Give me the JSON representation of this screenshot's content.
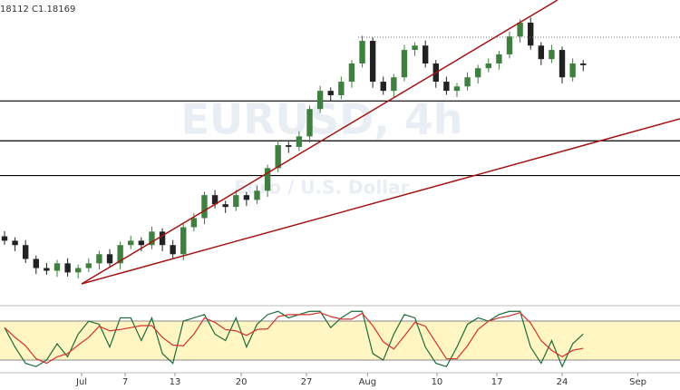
{
  "chart_data": [
    {
      "type": "candlestick",
      "header": "18112  C1.18169",
      "watermark": "EURUSD, 4h",
      "watermark_sub": "Euro / U.S. Dollar",
      "up_color": "#3f7f3f",
      "down_color": "#222222",
      "ylim": [
        1.111,
        1.201
      ],
      "xlim": [
        -0.43,
        64.2
      ],
      "levels": [
        1.1711,
        1.1593,
        1.149
      ],
      "level_color": "#000000",
      "candles": [
        [
          1.131,
          1.1325,
          1.1285,
          1.1297
        ],
        [
          1.1297,
          1.1307,
          1.1266,
          1.1284
        ],
        [
          1.1284,
          1.1299,
          1.1231,
          1.1243
        ],
        [
          1.1243,
          1.1253,
          1.1198,
          1.1216
        ],
        [
          1.1216,
          1.1231,
          1.1196,
          1.1208
        ],
        [
          1.1208,
          1.124,
          1.119,
          1.123
        ],
        [
          1.123,
          1.1245,
          1.1191,
          1.1203
        ],
        [
          1.1203,
          1.1226,
          1.1185,
          1.1216
        ],
        [
          1.1216,
          1.1245,
          1.1204,
          1.123
        ],
        [
          1.123,
          1.1267,
          1.1212,
          1.1257
        ],
        [
          1.1257,
          1.1272,
          1.1218,
          1.123
        ],
        [
          1.123,
          1.1294,
          1.1212,
          1.1284
        ],
        [
          1.1284,
          1.1312,
          1.1272,
          1.1297
        ],
        [
          1.1297,
          1.1307,
          1.1266,
          1.1284
        ],
        [
          1.1284,
          1.1339,
          1.1272,
          1.1324
        ],
        [
          1.1324,
          1.1334,
          1.1266,
          1.1284
        ],
        [
          1.1284,
          1.1299,
          1.1245,
          1.1257
        ],
        [
          1.1257,
          1.1347,
          1.1239,
          1.1337
        ],
        [
          1.1337,
          1.1379,
          1.1325,
          1.1364
        ],
        [
          1.1364,
          1.1442,
          1.1346,
          1.1432
        ],
        [
          1.1432,
          1.1447,
          1.1393,
          1.1405
        ],
        [
          1.1405,
          1.1415,
          1.1379,
          1.1397
        ],
        [
          1.1397,
          1.1447,
          1.1385,
          1.1432
        ],
        [
          1.1432,
          1.1442,
          1.14,
          1.1418
        ],
        [
          1.1418,
          1.146,
          1.1406,
          1.1445
        ],
        [
          1.1445,
          1.1522,
          1.1427,
          1.1512
        ],
        [
          1.1512,
          1.1595,
          1.15,
          1.158
        ],
        [
          1.158,
          1.159,
          1.1557,
          1.1575
        ],
        [
          1.1575,
          1.1621,
          1.1563,
          1.1606
        ],
        [
          1.1606,
          1.1697,
          1.1588,
          1.1687
        ],
        [
          1.1687,
          1.1756,
          1.1675,
          1.1741
        ],
        [
          1.1741,
          1.1751,
          1.171,
          1.1728
        ],
        [
          1.1728,
          1.1783,
          1.1716,
          1.1768
        ],
        [
          1.1768,
          1.1832,
          1.175,
          1.1822
        ],
        [
          1.1822,
          1.1904,
          1.181,
          1.1889
        ],
        [
          1.1889,
          1.1899,
          1.175,
          1.1768
        ],
        [
          1.1768,
          1.1783,
          1.1729,
          1.1741
        ],
        [
          1.1741,
          1.1791,
          1.1723,
          1.1781
        ],
        [
          1.1781,
          1.1877,
          1.1769,
          1.1862
        ],
        [
          1.1862,
          1.1885,
          1.1844,
          1.1875
        ],
        [
          1.1875,
          1.189,
          1.181,
          1.1822
        ],
        [
          1.1822,
          1.1832,
          1.175,
          1.1768
        ],
        [
          1.1768,
          1.1783,
          1.1729,
          1.1741
        ],
        [
          1.1741,
          1.1764,
          1.1723,
          1.1754
        ],
        [
          1.1754,
          1.1796,
          1.1742,
          1.1781
        ],
        [
          1.1781,
          1.1818,
          1.1763,
          1.1808
        ],
        [
          1.1808,
          1.1837,
          1.1796,
          1.1822
        ],
        [
          1.1822,
          1.1859,
          1.1804,
          1.1849
        ],
        [
          1.1849,
          1.1917,
          1.1837,
          1.1902
        ],
        [
          1.1902,
          1.1953,
          1.1884,
          1.1943
        ],
        [
          1.1943,
          1.1958,
          1.1863,
          1.1875
        ],
        [
          1.1875,
          1.1885,
          1.1817,
          1.1835
        ],
        [
          1.1835,
          1.1877,
          1.1823,
          1.1862
        ],
        [
          1.1862,
          1.1872,
          1.1763,
          1.1781
        ],
        [
          1.1781,
          1.1837,
          1.1769,
          1.1822
        ],
        [
          1.1822,
          1.1832,
          1.1799,
          1.18169
        ]
      ],
      "xticks": [
        {
          "value": 7.33,
          "label": "Jul"
        },
        {
          "value": 11.47,
          "label": "7"
        },
        {
          "value": 16.2,
          "label": "13"
        },
        {
          "value": 22.5,
          "label": "20"
        },
        {
          "value": 28.7,
          "label": "27"
        },
        {
          "value": 34.5,
          "label": "Aug"
        },
        {
          "value": 41.1,
          "label": "10"
        },
        {
          "value": 46.8,
          "label": "17"
        },
        {
          "value": 53.0,
          "label": "24"
        },
        {
          "value": 60.2,
          "label": "Sep"
        }
      ]
    },
    {
      "type": "stochastic",
      "ylim": [
        0,
        100
      ],
      "levels": [
        20,
        80
      ],
      "band_color": "#fff6c4",
      "series": [
        {
          "color": "#1f6b3a",
          "values": [
            70,
            40,
            15,
            10,
            20,
            45,
            25,
            60,
            80,
            75,
            40,
            85,
            85,
            50,
            85,
            30,
            15,
            80,
            85,
            90,
            60,
            50,
            85,
            40,
            75,
            90,
            95,
            85,
            90,
            95,
            95,
            70,
            85,
            95,
            95,
            30,
            20,
            60,
            90,
            85,
            40,
            15,
            10,
            40,
            75,
            85,
            80,
            90,
            95,
            95,
            40,
            15,
            50,
            10,
            45,
            60
          ]
        },
        {
          "color": "#d0342c",
          "values": [
            70,
            55,
            42,
            22,
            15,
            25,
            30,
            43,
            55,
            72,
            65,
            67,
            70,
            73,
            73,
            55,
            43,
            42,
            60,
            85,
            78,
            67,
            65,
            58,
            67,
            68,
            87,
            90,
            90,
            90,
            93,
            87,
            83,
            83,
            92,
            73,
            48,
            37,
            57,
            78,
            72,
            47,
            22,
            22,
            42,
            67,
            80,
            85,
            88,
            93,
            77,
            50,
            35,
            25,
            35,
            38
          ]
        }
      ]
    }
  ]
}
